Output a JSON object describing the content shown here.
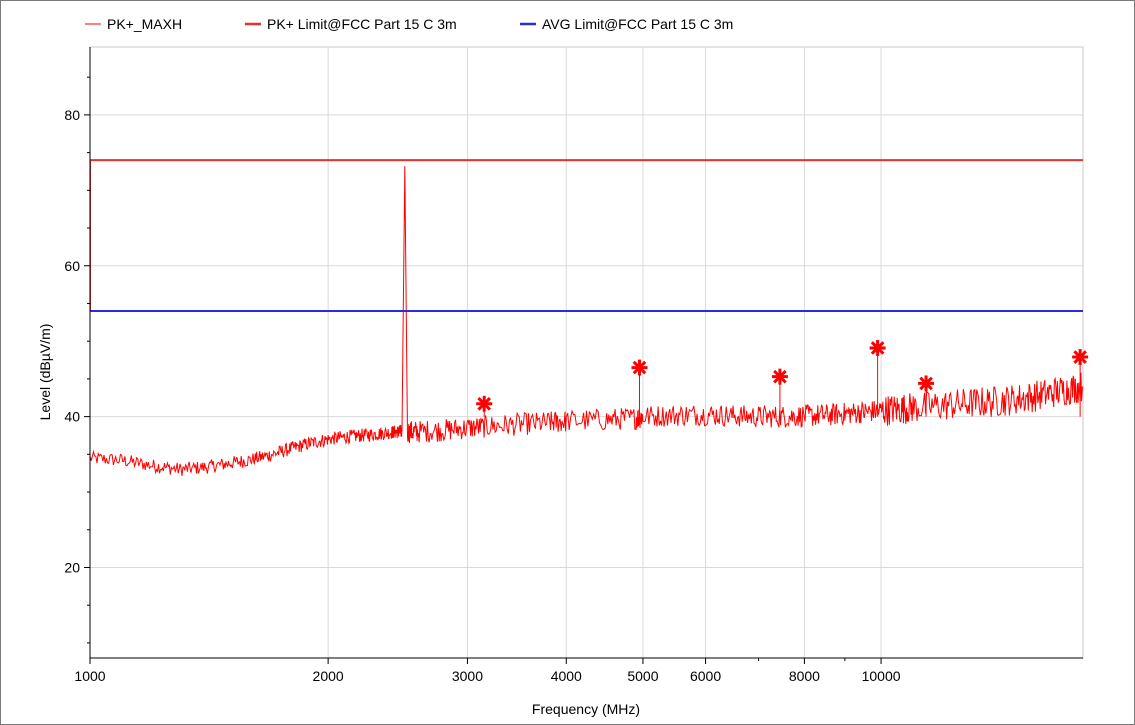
{
  "chart_data": {
    "type": "line",
    "x_scale": "log",
    "xlabel": "Frequency (MHz)",
    "ylabel": "Level (dBµV/m)",
    "xlim": [
      1000,
      18000
    ],
    "ylim": [
      8,
      89
    ],
    "grid": true,
    "legend_position": "top",
    "x_ticks": [
      {
        "value": 1000,
        "label": "1000"
      },
      {
        "value": 2000,
        "label": "2000"
      },
      {
        "value": 3000,
        "label": "3000"
      },
      {
        "value": 4000,
        "label": "4000"
      },
      {
        "value": 5000,
        "label": "5000"
      },
      {
        "value": 6000,
        "label": "6000"
      },
      {
        "value": 8000,
        "label": "8000"
      },
      {
        "value": 10000,
        "label": "10000"
      }
    ],
    "y_ticks": [
      {
        "value": 20,
        "label": "20"
      },
      {
        "value": 40,
        "label": "40"
      },
      {
        "value": 60,
        "label": "60"
      },
      {
        "value": 80,
        "label": "80"
      }
    ],
    "legend": [
      {
        "label": "PK+_MAXH",
        "color": "#ff2a2a"
      },
      {
        "label": "PK+ Limit@FCC Part 15 C  3m",
        "color": "#e83030"
      },
      {
        "label": "AVG Limit@FCC Part 15 C  3m",
        "color": "#2b2bdd"
      }
    ],
    "series": [
      {
        "name": "PK+_MAXH",
        "color": "#ff0000",
        "x": [
          1000,
          1100,
          1200,
          1300,
          1400,
          1500,
          1600,
          1700,
          1800,
          1900,
          2000,
          2100,
          2200,
          2300,
          2400,
          2450,
          2480,
          2500,
          2520,
          2600,
          2800,
          3000,
          3200,
          3500,
          3800,
          4000,
          4500,
          4900,
          5000,
          5500,
          6000,
          6500,
          7000,
          7500,
          8000,
          8500,
          9000,
          9500,
          10000,
          10500,
          11000,
          12000,
          13000,
          14000,
          15000,
          16000,
          17000,
          18000
        ],
        "y": [
          34.5,
          34.2,
          33.5,
          33.0,
          33.3,
          33.8,
          34.3,
          35.0,
          35.8,
          36.5,
          37.0,
          37.3,
          37.5,
          37.7,
          37.9,
          38.0,
          38.0,
          73.2,
          38.0,
          38.0,
          38.2,
          38.5,
          38.7,
          39.0,
          39.2,
          39.4,
          39.6,
          39.8,
          40.0,
          40.2,
          40.3,
          40.1,
          40.0,
          40.0,
          40.1,
          40.2,
          40.4,
          40.6,
          40.8,
          41.0,
          41.2,
          41.5,
          41.8,
          42.0,
          42.4,
          42.9,
          43.5,
          44.0
        ]
      },
      {
        "name": "PK+ Limit@FCC Part 15 C  3m",
        "color": "#e83030",
        "x": [
          1000,
          1000,
          18000
        ],
        "y": [
          54,
          74,
          74
        ]
      },
      {
        "name": "AVG Limit@FCC Part 15 C  3m",
        "color": "#2b2bdd",
        "x": [
          1000,
          18000
        ],
        "y": [
          54,
          54
        ]
      }
    ],
    "markers": [
      {
        "x": 3150,
        "y": 41.7
      },
      {
        "x": 4950,
        "y": 46.5
      },
      {
        "x": 7450,
        "y": 45.3
      },
      {
        "x": 9900,
        "y": 49.1
      },
      {
        "x": 11400,
        "y": 44.4
      },
      {
        "x": 17850,
        "y": 47.9
      }
    ]
  }
}
